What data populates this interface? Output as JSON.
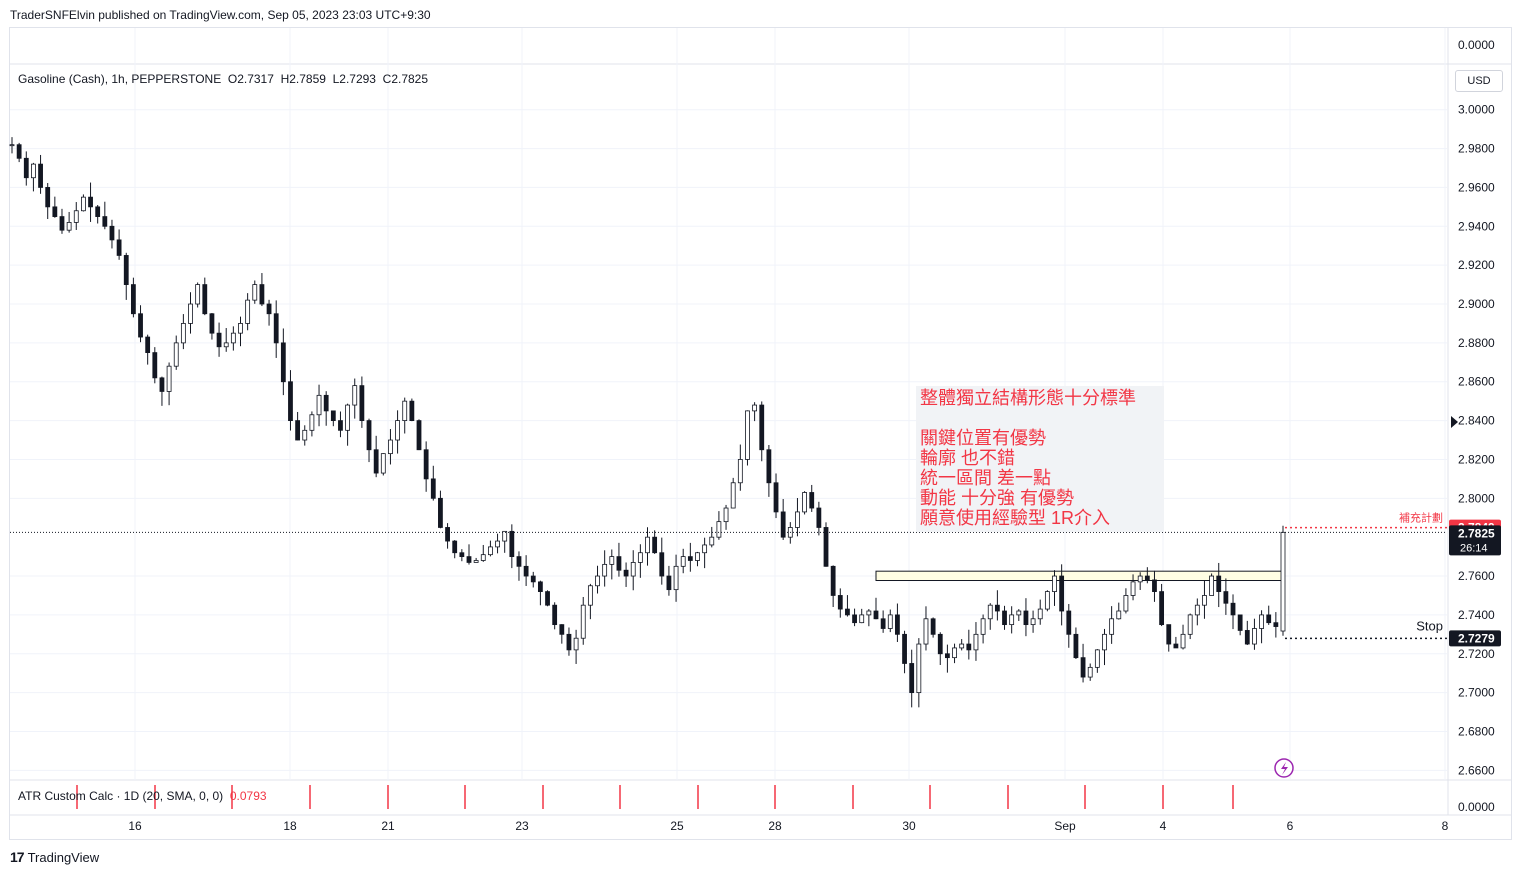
{
  "publisher_line": "TraderSNFElvin published on TradingView.com, Sep 05, 2023 23:03 UTC+9:30",
  "symbol_line": "Gasoline (Cash), 1h, PEPPERSTONE  O2.7317  H2.7859  L2.7293  C2.7825",
  "currency": "USD",
  "indicator_legend": {
    "name": "ATR Custom Calc · 1D (20, SMA, 0, 0)",
    "value": "0.0793"
  },
  "footer_brand": "TradingView",
  "annotation_lines": [
    "整體獨立結構形態十分標準",
    "",
    "關鍵位置有優勢",
    "輪廓 也不錯",
    "統一區間 差一點",
    "動能 十分強 有優勢",
    "願意使用經驗型 1R介入"
  ],
  "price_labels": {
    "target_label": "補充計劃",
    "target_value": "2.7849",
    "current_value": "2.7825",
    "countdown": "26:14",
    "stop_label": "Stop",
    "stop_value": "2.7279"
  },
  "colors": {
    "up": "#131722",
    "down": "#131722",
    "accent": "#f23645",
    "zone": "#fffde3"
  },
  "chart_data": {
    "type": "line",
    "title": "Gasoline (Cash), 1h, PEPPERSTONE",
    "y_ticks": [
      "3.0000",
      "2.9800",
      "2.9600",
      "2.9400",
      "2.9200",
      "2.9000",
      "2.8800",
      "2.8600",
      "2.8400",
      "2.8200",
      "2.8000",
      "2.7600",
      "2.7400",
      "2.7200",
      "2.7000",
      "2.6800",
      "2.6600"
    ],
    "indicator_y_tick": "0.0000",
    "indicator_y_tick_bottom": "0.0000",
    "x_ticks": [
      "16",
      "18",
      "21",
      "23",
      "25",
      "28",
      "30",
      "Sep",
      "4",
      "6",
      "8"
    ],
    "ylim": [
      2.654,
      3.005
    ],
    "series": [
      {
        "values": [
          2.982,
          2.975,
          2.965,
          2.972,
          2.96,
          2.95,
          2.945,
          2.938,
          2.942,
          2.948,
          2.955,
          2.95,
          2.945,
          2.94,
          2.933,
          2.925,
          2.91,
          2.895,
          2.883,
          2.875,
          2.862,
          2.855,
          2.868,
          2.88,
          2.89,
          2.9,
          2.91,
          2.895,
          2.885,
          2.878,
          2.88,
          2.885,
          2.89,
          2.902,
          2.91,
          2.9,
          2.895,
          2.88,
          2.86,
          2.84,
          2.83,
          2.835,
          2.843,
          2.853,
          2.845,
          2.84,
          2.835,
          2.848,
          2.858,
          2.84,
          2.825,
          2.813,
          2.823,
          2.83,
          2.84,
          2.85,
          2.84,
          2.825,
          2.81,
          2.8,
          2.785,
          2.778,
          2.772,
          2.77,
          2.767,
          2.768,
          2.771,
          2.775,
          2.778,
          2.783,
          2.77,
          2.765,
          2.76,
          2.757,
          2.752,
          2.745,
          2.735,
          2.73,
          2.722,
          2.728,
          2.745,
          2.755,
          2.76,
          2.766,
          2.77,
          2.763,
          2.76,
          2.767,
          2.772,
          2.78,
          2.772,
          2.76,
          2.753,
          2.765,
          2.77,
          2.768,
          2.772,
          2.776,
          2.78,
          2.788,
          2.795,
          2.808,
          2.82,
          2.845,
          2.848,
          2.825,
          2.808,
          2.793,
          2.78,
          2.785,
          2.793,
          2.803,
          2.795,
          2.785,
          2.765,
          2.75,
          2.743,
          2.74,
          2.736,
          2.74,
          2.742,
          2.738,
          2.733,
          2.74,
          2.73,
          2.715,
          2.7,
          2.725,
          2.738,
          2.73,
          2.72,
          2.718,
          2.723,
          2.725,
          2.722,
          2.73,
          2.738,
          2.745,
          2.742,
          2.735,
          2.74,
          2.742,
          2.735,
          2.738,
          2.743,
          2.752,
          2.76,
          2.742,
          2.73,
          2.718,
          2.708,
          2.713,
          2.722,
          2.73,
          2.738,
          2.742,
          2.75,
          2.757,
          2.76,
          2.758,
          2.752,
          2.735,
          2.725,
          2.723,
          2.73,
          2.74,
          2.745,
          2.75,
          2.76,
          2.752,
          2.746,
          2.74,
          2.732,
          2.725,
          2.733,
          2.74,
          2.736,
          2.734,
          2.7825
        ]
      }
    ]
  }
}
